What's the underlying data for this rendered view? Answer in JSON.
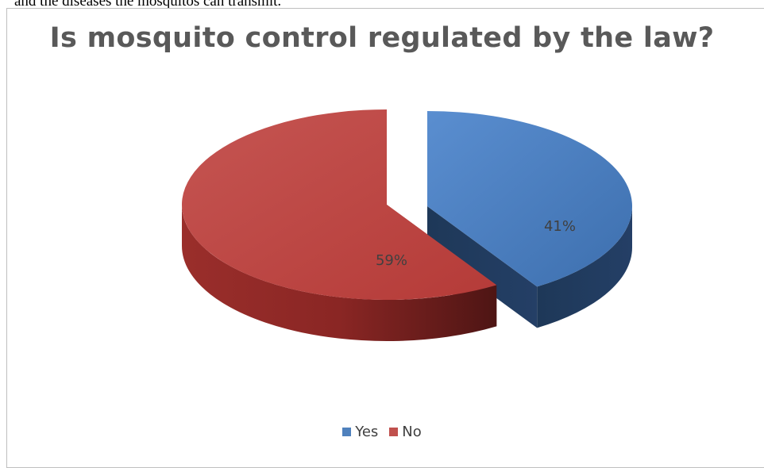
{
  "page_text_fragment": "and the diseases the mosquitos can transmit.",
  "chart_data": {
    "type": "pie",
    "title": "Is mosquito control regulated by the law?",
    "categories": [
      "Yes",
      "No"
    ],
    "values": [
      41,
      59
    ],
    "data_labels": [
      "41%",
      "59%"
    ],
    "colors": [
      "#4f81bd",
      "#c0504d"
    ],
    "style": "3d-exploded",
    "legend_position": "bottom"
  }
}
